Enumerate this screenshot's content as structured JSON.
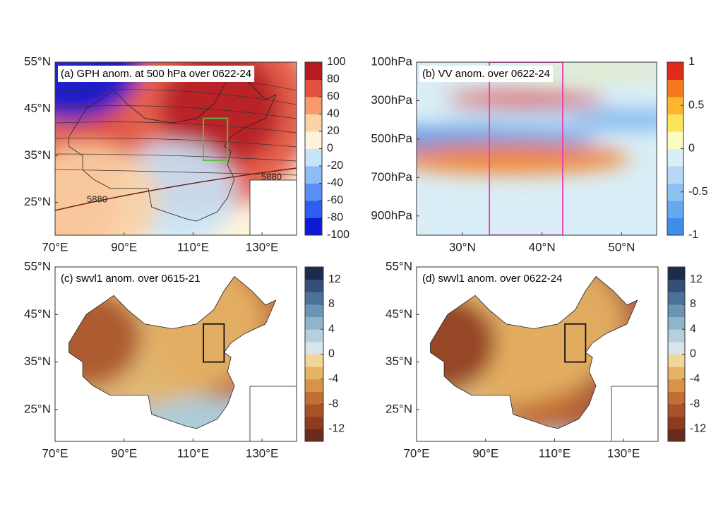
{
  "chart_data": [
    {
      "type": "contour-map",
      "title": "(a) GPH anom. at 500 hPa over 0622-24",
      "xlim": [
        70,
        140
      ],
      "ylim": [
        18,
        55
      ],
      "xticks": [
        {
          "value": 70,
          "label": "70°E"
        },
        {
          "value": 90,
          "label": "90°E"
        },
        {
          "value": 110,
          "label": "110°E"
        },
        {
          "value": 130,
          "label": "130°E"
        }
      ],
      "yticks": [
        {
          "value": 25,
          "label": "25°N"
        },
        {
          "value": 35,
          "label": "35°N"
        },
        {
          "value": 45,
          "label": "45°N"
        },
        {
          "value": 55,
          "label": "55°N"
        }
      ],
      "colorbar": {
        "lim": [
          -100,
          100
        ],
        "ticks": [
          -100,
          -80,
          -60,
          -40,
          -20,
          0,
          20,
          40,
          60,
          80,
          100
        ],
        "colors": [
          "#0a1ad6",
          "#2e5ef0",
          "#5a8ff5",
          "#8dbcf7",
          "#c6e4fa",
          "#fdf3dc",
          "#fcd3a5",
          "#f79a6c",
          "#e2513f",
          "#b51c22"
        ]
      },
      "box": {
        "x": [
          113,
          120
        ],
        "y": [
          34,
          43
        ],
        "color": "#4cc43a"
      },
      "annotations": [
        "5880",
        "5880"
      ]
    },
    {
      "type": "contour-section",
      "title": "(b) VV anom. over 0622-24",
      "xlim": [
        24.25,
        54.4
      ],
      "ylim": [
        1000,
        100
      ],
      "xticks": [
        {
          "value": 30,
          "label": "30°N"
        },
        {
          "value": 40,
          "label": "40°N"
        },
        {
          "value": 50,
          "label": "50°N"
        }
      ],
      "yticks": [
        {
          "value": 100,
          "label": "100hPa"
        },
        {
          "value": 300,
          "label": "300hPa"
        },
        {
          "value": 500,
          "label": "500hPa"
        },
        {
          "value": 700,
          "label": "700hPa"
        },
        {
          "value": 900,
          "label": "900hPa"
        }
      ],
      "colorbar": {
        "lim": [
          -1,
          1
        ],
        "ticks": [
          -1,
          -0.5,
          0,
          0.5,
          1
        ],
        "colors": [
          "#3e8ee8",
          "#64a8ee",
          "#8ec2f1",
          "#b5d9f4",
          "#d9eef6",
          "#fdfbc0",
          "#fde45a",
          "#fbb62f",
          "#f57a1f",
          "#e02a1a"
        ]
      },
      "box": {
        "x": [
          33.4,
          42.6
        ],
        "y": [
          1000,
          100
        ],
        "color": "#e83fb4"
      }
    },
    {
      "type": "contour-map",
      "title": "(c) swvl1 anom. over 0615-21",
      "xlim": [
        70,
        140
      ],
      "ylim": [
        18.3,
        55
      ],
      "xticks": [
        {
          "value": 70,
          "label": "70°E"
        },
        {
          "value": 90,
          "label": "90°E"
        },
        {
          "value": 110,
          "label": "110°E"
        },
        {
          "value": 130,
          "label": "130°E"
        }
      ],
      "yticks": [
        {
          "value": 25,
          "label": "25°N"
        },
        {
          "value": 35,
          "label": "35°N"
        },
        {
          "value": 45,
          "label": "45°N"
        },
        {
          "value": 55,
          "label": "55°N"
        }
      ],
      "colorbar": {
        "lim": [
          -14,
          14
        ],
        "ticks": [
          -12,
          -8,
          -4,
          0,
          4,
          8,
          12
        ],
        "colors": [
          "#6b2a1e",
          "#8e3b1f",
          "#a9522a",
          "#c26f35",
          "#d79447",
          "#e6b466",
          "#f2d598",
          "#d8e4e8",
          "#b4d0dc",
          "#8fb5ca",
          "#6b95b5",
          "#4b739a",
          "#33507a",
          "#1f2b4a"
        ]
      },
      "box": {
        "x": [
          113,
          119
        ],
        "y": [
          35,
          43
        ],
        "color": "#111111"
      }
    },
    {
      "type": "contour-map",
      "title": "(d) swvl1 anom. over 0622-24",
      "xlim": [
        70,
        140
      ],
      "ylim": [
        18.3,
        55
      ],
      "xticks": [
        {
          "value": 70,
          "label": "70°E"
        },
        {
          "value": 90,
          "label": "90°E"
        },
        {
          "value": 110,
          "label": "110°E"
        },
        {
          "value": 130,
          "label": "130°E"
        }
      ],
      "yticks": [
        {
          "value": 25,
          "label": "25°N"
        },
        {
          "value": 35,
          "label": "35°N"
        },
        {
          "value": 45,
          "label": "45°N"
        },
        {
          "value": 55,
          "label": "55°N"
        }
      ],
      "colorbar": {
        "lim": [
          -14,
          14
        ],
        "ticks": [
          -12,
          -8,
          -4,
          0,
          4,
          8,
          12
        ],
        "colors": [
          "#6b2a1e",
          "#8e3b1f",
          "#a9522a",
          "#c26f35",
          "#d79447",
          "#e6b466",
          "#f2d598",
          "#d8e4e8",
          "#b4d0dc",
          "#8fb5ca",
          "#6b95b5",
          "#4b739a",
          "#33507a",
          "#1f2b4a"
        ]
      },
      "box": {
        "x": [
          113,
          119
        ],
        "y": [
          35,
          43
        ],
        "color": "#111111"
      }
    }
  ]
}
